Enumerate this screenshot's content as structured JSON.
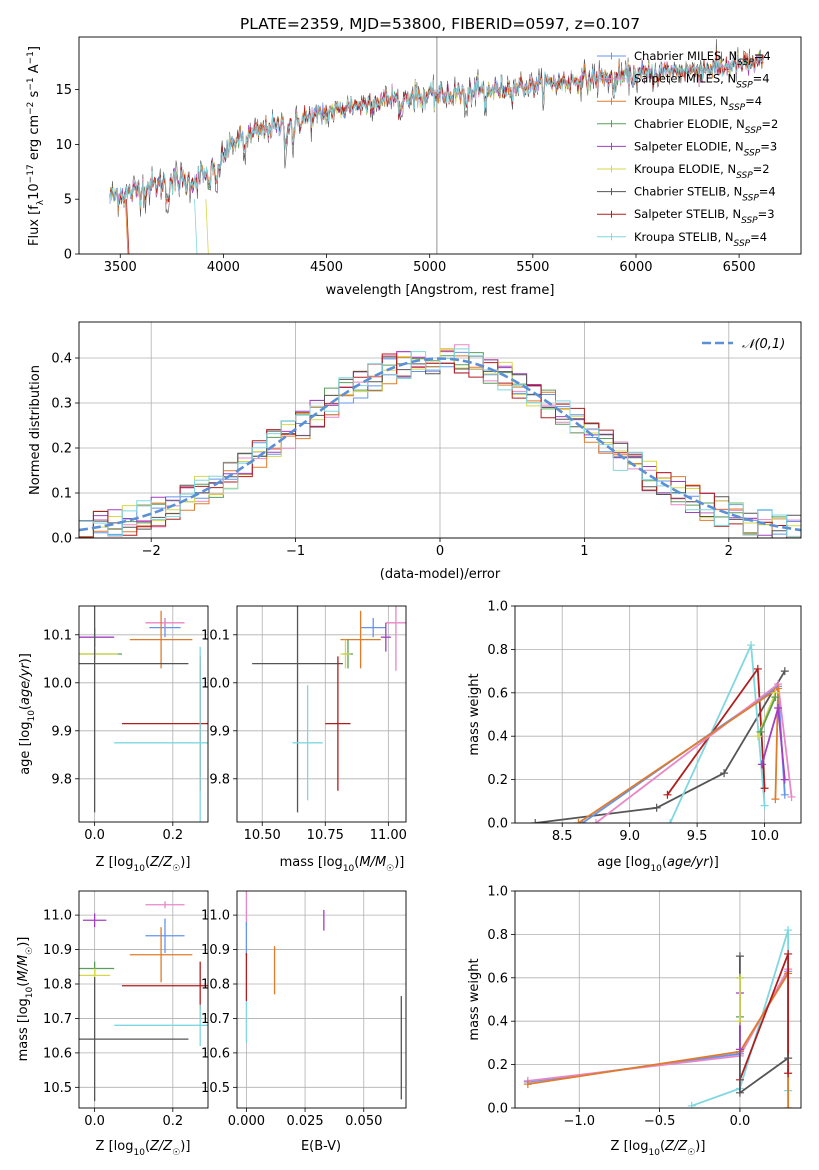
{
  "title": "PLATE=2359, MJD=53800, FIBERID=0597, z=0.107",
  "colors": {
    "Chabrier MILES": "#6495ed",
    "Salpeter MILES": "#e887c6",
    "Kroupa MILES": "#e07b2a",
    "Chabrier ELODIE": "#5a9e5a",
    "Salpeter ELODIE": "#a040c0",
    "Kroupa ELODIE": "#d4d84a",
    "Chabrier STELIB": "#555555",
    "Salpeter STELIB": "#b01e1e",
    "Kroupa STELIB": "#7fd8e0"
  },
  "chart_data": [
    {
      "id": "spectrum",
      "type": "line",
      "xlabel": "wavelength [Angstrom, rest frame]",
      "ylabel": "Flux [f_λ 10^-17 erg cm^-2 s^-1 A^-1]",
      "xlim": [
        3300,
        6800
      ],
      "ylim": [
        0,
        19.8
      ],
      "xticks": [
        3500,
        4000,
        4500,
        5000,
        5500,
        6000,
        6500
      ],
      "yticks": [
        0,
        5,
        10,
        15
      ],
      "legend_position": "right",
      "legend": [
        {
          "model": "Chabrier MILES",
          "label_main": "Chabrier MILES, N",
          "label_sub": "SSP",
          "label_tail": "=4"
        },
        {
          "model": "Salpeter MILES",
          "label_main": "Salpeter MILES, N",
          "label_sub": "SSP",
          "label_tail": "=4"
        },
        {
          "model": "Kroupa MILES",
          "label_main": "Kroupa MILES, N",
          "label_sub": "SSP",
          "label_tail": "=4"
        },
        {
          "model": "Chabrier ELODIE",
          "label_main": "Chabrier ELODIE, N",
          "label_sub": "SSP",
          "label_tail": "=2"
        },
        {
          "model": "Salpeter ELODIE",
          "label_main": "Salpeter ELODIE, N",
          "label_sub": "SSP",
          "label_tail": "=3"
        },
        {
          "model": "Kroupa ELODIE",
          "label_main": "Kroupa ELODIE, N",
          "label_sub": "SSP",
          "label_tail": "=2"
        },
        {
          "model": "Chabrier STELIB",
          "label_main": "Chabrier STELIB, N",
          "label_sub": "SSP",
          "label_tail": "=4"
        },
        {
          "model": "Salpeter STELIB",
          "label_main": "Salpeter STELIB, N",
          "label_sub": "SSP",
          "label_tail": "=3"
        },
        {
          "model": "Kroupa STELIB",
          "label_main": "Kroupa STELIB, N",
          "label_sub": "SSP",
          "label_tail": "=4"
        }
      ],
      "continuum": [
        [
          3450,
          5.2
        ],
        [
          3550,
          5.6
        ],
        [
          3700,
          6.5
        ],
        [
          3850,
          6.7
        ],
        [
          3950,
          7.5
        ],
        [
          4050,
          10.3
        ],
        [
          4200,
          11.4
        ],
        [
          4400,
          12.3
        ],
        [
          4600,
          13.4
        ],
        [
          4800,
          14.2
        ],
        [
          5000,
          14.4
        ],
        [
          5200,
          14.8
        ],
        [
          5400,
          15.2
        ],
        [
          5600,
          15.6
        ],
        [
          5800,
          16.0
        ],
        [
          6000,
          16.3
        ],
        [
          6200,
          16.7
        ],
        [
          6400,
          17.0
        ],
        [
          6620,
          17.5
        ]
      ]
    },
    {
      "id": "residuals",
      "type": "histogram",
      "xlabel": "(data-model)/error",
      "ylabel": "Normed distribution",
      "xlim": [
        -2.5,
        2.5
      ],
      "ylim": [
        0,
        0.48
      ],
      "xticks": [
        -2,
        -1,
        0,
        1,
        2
      ],
      "xticklabels": [
        "−2",
        "−1",
        "0",
        "1",
        "2"
      ],
      "yticks": [
        0.0,
        0.1,
        0.2,
        0.3,
        0.4
      ],
      "yticklabels": [
        "0.0",
        "0.1",
        "0.2",
        "0.3",
        "0.4"
      ],
      "grid": true,
      "legend_position": "top-right",
      "reference_label": "𝒩(0,1)",
      "reference": "normal pdf, mean 0, sigma 1"
    },
    {
      "id": "age_vs_Z",
      "type": "errorbar",
      "xlabel": "Z [log10(Z/Z☉)]",
      "ylabel": "age [log10(age/yr)]",
      "xlim": [
        -0.04,
        0.29
      ],
      "ylim": [
        9.71,
        10.16
      ],
      "xticks": [
        0.0,
        0.2
      ],
      "xticklabels": [
        "0.0",
        "0.2"
      ],
      "yticks": [
        9.8,
        9.9,
        10.0,
        10.1
      ],
      "yticklabels": [
        "9.8",
        "9.9",
        "10.0",
        "10.1"
      ],
      "points": [
        {
          "model": "Chabrier MILES",
          "x": 0.18,
          "xerr": 0.04,
          "y": 10.115,
          "yerr": 0.02
        },
        {
          "model": "Salpeter MILES",
          "x": 0.18,
          "xerr": 0.05,
          "y": 10.125,
          "yerr": 0.01
        },
        {
          "model": "Kroupa MILES",
          "x": 0.17,
          "xerr": 0.08,
          "y": 10.09,
          "yerr": 0.06
        },
        {
          "model": "Chabrier ELODIE",
          "x": 0.0,
          "xerr": 0.07,
          "y": 10.06,
          "yerr": 0.01
        },
        {
          "model": "Salpeter ELODIE",
          "x": 0.0,
          "xerr": 0.05,
          "y": 10.095,
          "yerr": 0.02
        },
        {
          "model": "Kroupa ELODIE",
          "x": 0.0,
          "xerr": 0.06,
          "y": 10.06,
          "yerr": 0.005
        },
        {
          "model": "Chabrier STELIB",
          "x": 0.0,
          "xerr": 0.24,
          "y": 10.04,
          "yerr": 0.31
        },
        {
          "model": "Salpeter STELIB",
          "x": 0.27,
          "xerr": 0.2,
          "y": 9.915,
          "yerr": 0.14
        },
        {
          "model": "Kroupa STELIB",
          "x": 0.27,
          "xerr": 0.22,
          "y": 9.875,
          "yerr": 0.2
        }
      ]
    },
    {
      "id": "age_vs_mass",
      "type": "errorbar",
      "xlabel": "mass [log10(M/M☉)]",
      "ylabel": "",
      "xlim": [
        10.4,
        11.07
      ],
      "ylim": [
        9.71,
        10.16
      ],
      "xticks": [
        10.5,
        10.75,
        11.0
      ],
      "xticklabels": [
        "10.50",
        "10.75",
        "11.00"
      ],
      "yticks": [
        9.8,
        9.9,
        10.0,
        10.1
      ],
      "yticklabels": [
        "9.8",
        "9.9",
        "10.0",
        "10.1"
      ],
      "points": [
        {
          "model": "Chabrier MILES",
          "x": 10.94,
          "xerr": 0.05,
          "y": 10.115,
          "yerr": 0.02
        },
        {
          "model": "Salpeter MILES",
          "x": 11.03,
          "xerr": 0.04,
          "y": 10.125,
          "yerr": 0.1
        },
        {
          "model": "Kroupa MILES",
          "x": 10.89,
          "xerr": 0.08,
          "y": 10.09,
          "yerr": 0.06
        },
        {
          "model": "Chabrier ELODIE",
          "x": 10.84,
          "xerr": 0.02,
          "y": 10.06,
          "yerr": 0.03
        },
        {
          "model": "Salpeter ELODIE",
          "x": 10.99,
          "xerr": 0.02,
          "y": 10.095,
          "yerr": 0.03
        },
        {
          "model": "Kroupa ELODIE",
          "x": 10.83,
          "xerr": 0.02,
          "y": 10.06,
          "yerr": 0.03
        },
        {
          "model": "Chabrier STELIB",
          "x": 10.64,
          "xerr": 0.18,
          "y": 10.04,
          "yerr": 0.31
        },
        {
          "model": "Salpeter STELIB",
          "x": 10.8,
          "xerr": 0.05,
          "y": 9.915,
          "yerr": 0.14
        },
        {
          "model": "Kroupa STELIB",
          "x": 10.68,
          "xerr": 0.06,
          "y": 9.875,
          "yerr": 0.12
        }
      ]
    },
    {
      "id": "mass_weight_vs_age",
      "type": "line",
      "xlabel": "age [log10(age/yr)]",
      "ylabel": "mass weight",
      "xlim": [
        8.15,
        10.27
      ],
      "ylim": [
        0,
        1
      ],
      "xticks": [
        8.5,
        9.0,
        9.5,
        10.0
      ],
      "xticklabels": [
        "8.5",
        "9.0",
        "9.5",
        "10.0"
      ],
      "yticks": [
        0.0,
        0.2,
        0.4,
        0.6,
        0.8,
        1.0
      ],
      "yticklabels": [
        "0.0",
        "0.2",
        "0.4",
        "0.6",
        "0.8",
        "1.0"
      ],
      "grid": true,
      "series": [
        {
          "model": "Chabrier STELIB",
          "x": [
            8.3,
            9.2,
            9.7,
            10.15
          ],
          "y": [
            0.0,
            0.07,
            0.23,
            0.7
          ]
        },
        {
          "model": "Kroupa STELIB",
          "x": [
            9.3,
            9.9,
            10.0
          ],
          "y": [
            0.0,
            0.82,
            0.08
          ]
        },
        {
          "model": "Salpeter STELIB",
          "x": [
            9.28,
            9.95,
            10.0
          ],
          "y": [
            0.13,
            0.71,
            0.16
          ]
        },
        {
          "model": "Chabrier MILES",
          "x": [
            8.65,
            10.1,
            10.15
          ],
          "y": [
            0.0,
            0.63,
            0.13
          ]
        },
        {
          "model": "Salpeter MILES",
          "x": [
            8.75,
            10.1,
            10.2
          ],
          "y": [
            0.0,
            0.64,
            0.12
          ]
        },
        {
          "model": "Kroupa MILES",
          "x": [
            8.62,
            10.1,
            10.08
          ],
          "y": [
            0.0,
            0.62,
            0.11
          ]
        },
        {
          "model": "Salpeter ELODIE",
          "x": [
            9.98,
            10.1,
            10.15
          ],
          "y": [
            0.27,
            0.53,
            0.2
          ]
        },
        {
          "model": "Kroupa ELODIE",
          "x": [
            9.95,
            10.08
          ],
          "y": [
            0.4,
            0.6
          ]
        },
        {
          "model": "Chabrier ELODIE",
          "x": [
            9.97,
            10.08
          ],
          "y": [
            0.42,
            0.58
          ]
        }
      ]
    },
    {
      "id": "mass_vs_Z",
      "type": "errorbar",
      "xlabel": "Z [log10(Z/Z☉)]",
      "ylabel": "mass [log10(M/M☉)]",
      "xlim": [
        -0.04,
        0.29
      ],
      "ylim": [
        10.44,
        11.07
      ],
      "xticks": [
        0.0,
        0.2
      ],
      "xticklabels": [
        "0.0",
        "0.2"
      ],
      "yticks": [
        10.5,
        10.6,
        10.7,
        10.8,
        10.9,
        11.0
      ],
      "yticklabels": [
        "10.5",
        "10.6",
        "10.7",
        "10.8",
        "10.9",
        "11.0"
      ],
      "points": [
        {
          "model": "Chabrier MILES",
          "x": 0.18,
          "xerr": 0.05,
          "y": 10.94,
          "yerr": 0.05
        },
        {
          "model": "Salpeter MILES",
          "x": 0.18,
          "xerr": 0.05,
          "y": 11.03,
          "yerr": 0.01
        },
        {
          "model": "Kroupa MILES",
          "x": 0.17,
          "xerr": 0.08,
          "y": 10.885,
          "yerr": 0.08
        },
        {
          "model": "Chabrier ELODIE",
          "x": 0.0,
          "xerr": 0.05,
          "y": 10.845,
          "yerr": 0.02
        },
        {
          "model": "Salpeter ELODIE",
          "x": 0.0,
          "xerr": 0.03,
          "y": 10.985,
          "yerr": 0.02
        },
        {
          "model": "Kroupa ELODIE",
          "x": 0.0,
          "xerr": 0.04,
          "y": 10.825,
          "yerr": 0.02
        },
        {
          "model": "Chabrier STELIB",
          "x": 0.0,
          "xerr": 0.24,
          "y": 10.64,
          "yerr": 0.18
        },
        {
          "model": "Salpeter STELIB",
          "x": 0.27,
          "xerr": 0.2,
          "y": 10.795,
          "yerr": 0.07
        },
        {
          "model": "Kroupa STELIB",
          "x": 0.27,
          "xerr": 0.22,
          "y": 10.68,
          "yerr": 0.06
        }
      ]
    },
    {
      "id": "mass_vs_EBV",
      "type": "errorbar",
      "xlabel": "E(B-V)",
      "ylabel": "",
      "xlim": [
        -0.004,
        0.068
      ],
      "ylim": [
        10.44,
        11.07
      ],
      "xticks": [
        0.0,
        0.025,
        0.05
      ],
      "xticklabels": [
        "0.000",
        "0.025",
        "0.050"
      ],
      "yticks": [
        10.5,
        10.6,
        10.7,
        10.8,
        10.9,
        11.0
      ],
      "yticklabels": [
        "10.5",
        "10.6",
        "10.7",
        "10.8",
        "10.9",
        "11.0"
      ],
      "points": [
        {
          "model": "Salpeter MILES",
          "x": 0.0,
          "xerr": 0,
          "y": 11.02,
          "yerr": 0.05
        },
        {
          "model": "Chabrier MILES",
          "x": 0.0,
          "xerr": 0,
          "y": 10.93,
          "yerr": 0.05
        },
        {
          "model": "Kroupa MILES",
          "x": 0.012,
          "xerr": 0,
          "y": 10.84,
          "yerr": 0.07
        },
        {
          "model": "Salpeter ELODIE",
          "x": 0.033,
          "xerr": 0,
          "y": 10.985,
          "yerr": 0.03
        },
        {
          "model": "Salpeter STELIB",
          "x": 0.0,
          "xerr": 0,
          "y": 10.82,
          "yerr": 0.07
        },
        {
          "model": "Kroupa STELIB",
          "x": 0.0,
          "xerr": 0,
          "y": 10.69,
          "yerr": 0.06
        },
        {
          "model": "Chabrier STELIB",
          "x": 0.066,
          "xerr": 0,
          "y": 10.615,
          "yerr": 0.15
        }
      ]
    },
    {
      "id": "mass_weight_vs_Z",
      "type": "line",
      "xlabel": "Z [log10(Z/Z☉)]",
      "ylabel": "mass weight",
      "xlim": [
        -1.4,
        0.38
      ],
      "ylim": [
        0,
        1
      ],
      "xticks": [
        -1.0,
        -0.5,
        0.0
      ],
      "xticklabels": [
        "−1.0",
        "−0.5",
        "0.0"
      ],
      "yticks": [
        0.0,
        0.2,
        0.4,
        0.6,
        0.8,
        1.0
      ],
      "yticklabels": [
        "0.0",
        "0.2",
        "0.4",
        "0.6",
        "0.8",
        "1.0"
      ],
      "grid": true,
      "series": [
        {
          "model": "Kroupa STELIB",
          "x": [
            -0.3,
            0.0,
            0.3,
            0.3
          ],
          "y": [
            0.01,
            0.09,
            0.82,
            0.08
          ]
        },
        {
          "model": "Chabrier MILES",
          "x": [
            -1.32,
            0.0,
            0.3
          ],
          "y": [
            0.12,
            0.25,
            0.63
          ]
        },
        {
          "model": "Salpeter MILES",
          "x": [
            -1.32,
            0.0,
            0.3
          ],
          "y": [
            0.125,
            0.24,
            0.64
          ]
        },
        {
          "model": "Kroupa MILES",
          "x": [
            -1.32,
            0.0,
            0.3,
            0.3
          ],
          "y": [
            0.11,
            0.26,
            0.62,
            0.0
          ]
        },
        {
          "model": "Salpeter STELIB",
          "x": [
            0.0,
            0.3,
            0.3
          ],
          "y": [
            0.13,
            0.71,
            0.16
          ]
        },
        {
          "model": "Chabrier STELIB",
          "x": [
            0.0,
            0.0,
            0.3
          ],
          "y": [
            0.7,
            0.07,
            0.23
          ]
        },
        {
          "model": "Salpeter ELODIE",
          "x": [
            0.0,
            0.0
          ],
          "y": [
            0.53,
            0.27
          ]
        },
        {
          "model": "Chabrier ELODIE",
          "x": [
            0.0,
            0.0
          ],
          "y": [
            0.6,
            0.42
          ]
        },
        {
          "model": "Kroupa ELODIE",
          "x": [
            0.0,
            0.0
          ],
          "y": [
            0.4,
            0.6
          ]
        }
      ]
    }
  ]
}
